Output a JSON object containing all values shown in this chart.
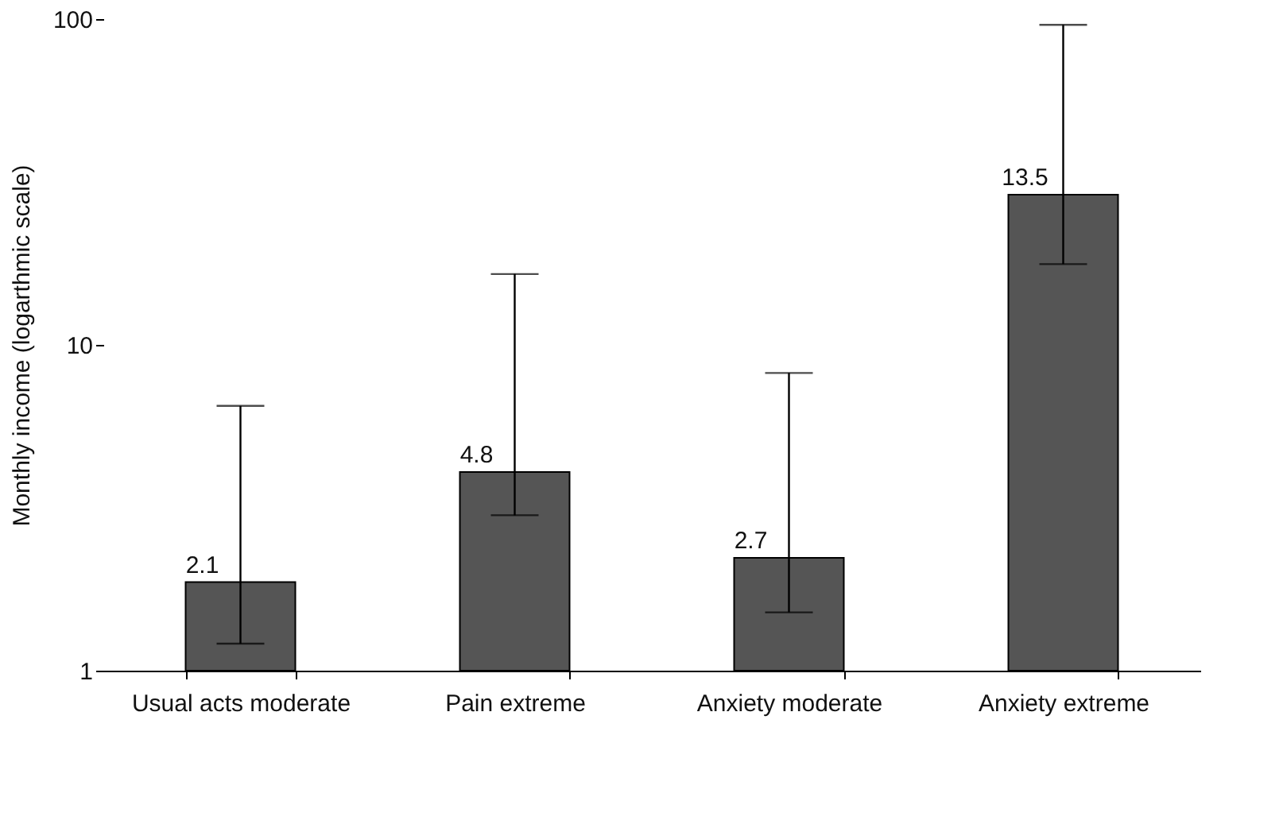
{
  "chart_data": {
    "type": "bar",
    "ylabel": "Monthly income (logarthmic scale)",
    "categories": [
      "Usual acts moderate",
      "Pain extreme",
      "Anxiety moderate",
      "Anxiety extreme"
    ],
    "values": [
      1.87,
      4.07,
      2.22,
      28.9
    ],
    "annotations": [
      {
        "text": "2.1",
        "x": "Usual acts moderate",
        "y": 1.87
      },
      {
        "text": "4.8",
        "x": "Pain extreme",
        "y": 4.07
      },
      {
        "text": "2.7",
        "x": "Anxiety moderate",
        "y": 2.22
      },
      {
        "text": "13.5",
        "x": "Anxiety extreme",
        "y": 28.9
      }
    ],
    "errors": [
      [
        1.21,
        6.5
      ],
      [
        3.0,
        16.5
      ],
      [
        1.51,
        8.2
      ],
      [
        17.7,
        96
      ]
    ],
    "color": "#555555",
    "log": true,
    "ylim": [
      1,
      100
    ],
    "yticks": [
      1,
      10,
      100
    ],
    "grid": false
  }
}
